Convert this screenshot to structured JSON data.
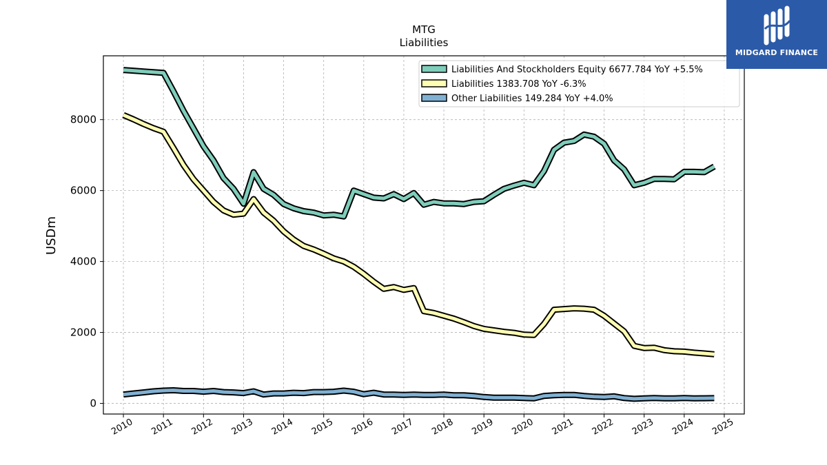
{
  "logo": {
    "text": "MIDGARD FINANCE"
  },
  "chart_data": {
    "type": "line",
    "title": "MTG",
    "subtitle": "Liabilities",
    "xlabel": "",
    "ylabel": "USDm",
    "xlim": [
      2009.5,
      2025.5
    ],
    "ylim": [
      -300,
      9800
    ],
    "x_ticks": [
      2010,
      2011,
      2012,
      2013,
      2014,
      2015,
      2016,
      2017,
      2018,
      2019,
      2020,
      2021,
      2022,
      2023,
      2024,
      2025
    ],
    "y_ticks": [
      0,
      2000,
      4000,
      6000,
      8000
    ],
    "grid": true,
    "legend_position": "top-right",
    "series": [
      {
        "name": "Liabilities And Stockholders Equity  6677.784 YoY +5.5%",
        "color": "#7fcdbb",
        "points": [
          [
            2010.0,
            9400
          ],
          [
            2010.25,
            9380
          ],
          [
            2010.5,
            9360
          ],
          [
            2010.75,
            9340
          ],
          [
            2011.0,
            9320
          ],
          [
            2011.25,
            8800
          ],
          [
            2011.5,
            8250
          ],
          [
            2011.75,
            7750
          ],
          [
            2012.0,
            7250
          ],
          [
            2012.25,
            6850
          ],
          [
            2012.5,
            6350
          ],
          [
            2012.75,
            6050
          ],
          [
            2013.0,
            5630
          ],
          [
            2013.25,
            6520
          ],
          [
            2013.5,
            6050
          ],
          [
            2013.75,
            5880
          ],
          [
            2014.0,
            5620
          ],
          [
            2014.25,
            5500
          ],
          [
            2014.5,
            5420
          ],
          [
            2014.75,
            5380
          ],
          [
            2015.0,
            5300
          ],
          [
            2015.25,
            5320
          ],
          [
            2015.5,
            5270
          ],
          [
            2015.75,
            6000
          ],
          [
            2016.0,
            5900
          ],
          [
            2016.25,
            5800
          ],
          [
            2016.5,
            5780
          ],
          [
            2016.75,
            5900
          ],
          [
            2017.0,
            5760
          ],
          [
            2017.25,
            5930
          ],
          [
            2017.5,
            5600
          ],
          [
            2017.75,
            5680
          ],
          [
            2018.0,
            5640
          ],
          [
            2018.25,
            5640
          ],
          [
            2018.5,
            5620
          ],
          [
            2018.75,
            5680
          ],
          [
            2019.0,
            5700
          ],
          [
            2019.25,
            5880
          ],
          [
            2019.5,
            6050
          ],
          [
            2019.75,
            6140
          ],
          [
            2020.0,
            6220
          ],
          [
            2020.25,
            6150
          ],
          [
            2020.5,
            6550
          ],
          [
            2020.75,
            7150
          ],
          [
            2021.0,
            7350
          ],
          [
            2021.25,
            7400
          ],
          [
            2021.5,
            7580
          ],
          [
            2021.75,
            7520
          ],
          [
            2022.0,
            7320
          ],
          [
            2022.25,
            6850
          ],
          [
            2022.5,
            6600
          ],
          [
            2022.75,
            6150
          ],
          [
            2023.0,
            6220
          ],
          [
            2023.25,
            6330
          ],
          [
            2023.5,
            6330
          ],
          [
            2023.75,
            6320
          ],
          [
            2024.0,
            6530
          ],
          [
            2024.25,
            6530
          ],
          [
            2024.5,
            6520
          ],
          [
            2024.75,
            6678
          ]
        ]
      },
      {
        "name": "Liabilities  1383.708 YoY -6.3%",
        "color": "#ffffb3",
        "points": [
          [
            2010.0,
            8130
          ],
          [
            2010.25,
            8010
          ],
          [
            2010.5,
            7880
          ],
          [
            2010.75,
            7760
          ],
          [
            2011.0,
            7660
          ],
          [
            2011.25,
            7200
          ],
          [
            2011.5,
            6720
          ],
          [
            2011.75,
            6320
          ],
          [
            2012.0,
            6000
          ],
          [
            2012.25,
            5680
          ],
          [
            2012.5,
            5440
          ],
          [
            2012.75,
            5320
          ],
          [
            2013.0,
            5350
          ],
          [
            2013.25,
            5760
          ],
          [
            2013.5,
            5380
          ],
          [
            2013.75,
            5150
          ],
          [
            2014.0,
            4850
          ],
          [
            2014.25,
            4620
          ],
          [
            2014.5,
            4440
          ],
          [
            2014.75,
            4340
          ],
          [
            2015.0,
            4220
          ],
          [
            2015.25,
            4090
          ],
          [
            2015.5,
            4000
          ],
          [
            2015.75,
            3850
          ],
          [
            2016.0,
            3650
          ],
          [
            2016.25,
            3430
          ],
          [
            2016.5,
            3230
          ],
          [
            2016.75,
            3280
          ],
          [
            2017.0,
            3200
          ],
          [
            2017.25,
            3250
          ],
          [
            2017.5,
            2600
          ],
          [
            2017.75,
            2550
          ],
          [
            2018.0,
            2470
          ],
          [
            2018.25,
            2390
          ],
          [
            2018.5,
            2290
          ],
          [
            2018.75,
            2180
          ],
          [
            2019.0,
            2100
          ],
          [
            2019.25,
            2060
          ],
          [
            2019.5,
            2020
          ],
          [
            2019.75,
            1990
          ],
          [
            2020.0,
            1940
          ],
          [
            2020.25,
            1930
          ],
          [
            2020.5,
            2240
          ],
          [
            2020.75,
            2640
          ],
          [
            2021.0,
            2660
          ],
          [
            2021.25,
            2680
          ],
          [
            2021.5,
            2670
          ],
          [
            2021.75,
            2640
          ],
          [
            2022.0,
            2470
          ],
          [
            2022.25,
            2250
          ],
          [
            2022.5,
            2030
          ],
          [
            2022.75,
            1620
          ],
          [
            2023.0,
            1560
          ],
          [
            2023.25,
            1570
          ],
          [
            2023.5,
            1500
          ],
          [
            2023.75,
            1470
          ],
          [
            2024.0,
            1460
          ],
          [
            2024.25,
            1430
          ],
          [
            2024.5,
            1410
          ],
          [
            2024.75,
            1384
          ]
        ]
      },
      {
        "name": "Other Liabilities  149.284 YoY +4.0%",
        "color": "#80b1d3",
        "points": [
          [
            2010.0,
            250
          ],
          [
            2010.25,
            280
          ],
          [
            2010.5,
            310
          ],
          [
            2010.75,
            340
          ],
          [
            2011.0,
            360
          ],
          [
            2011.25,
            370
          ],
          [
            2011.5,
            350
          ],
          [
            2011.75,
            350
          ],
          [
            2012.0,
            330
          ],
          [
            2012.25,
            350
          ],
          [
            2012.5,
            320
          ],
          [
            2012.75,
            310
          ],
          [
            2013.0,
            290
          ],
          [
            2013.25,
            340
          ],
          [
            2013.5,
            250
          ],
          [
            2013.75,
            280
          ],
          [
            2014.0,
            280
          ],
          [
            2014.25,
            300
          ],
          [
            2014.5,
            290
          ],
          [
            2014.75,
            320
          ],
          [
            2015.0,
            320
          ],
          [
            2015.25,
            330
          ],
          [
            2015.5,
            360
          ],
          [
            2015.75,
            330
          ],
          [
            2016.0,
            260
          ],
          [
            2016.25,
            300
          ],
          [
            2016.5,
            250
          ],
          [
            2016.75,
            250
          ],
          [
            2017.0,
            240
          ],
          [
            2017.25,
            250
          ],
          [
            2017.5,
            240
          ],
          [
            2017.75,
            240
          ],
          [
            2018.0,
            250
          ],
          [
            2018.25,
            230
          ],
          [
            2018.5,
            230
          ],
          [
            2018.75,
            210
          ],
          [
            2019.0,
            180
          ],
          [
            2019.25,
            160
          ],
          [
            2019.5,
            160
          ],
          [
            2019.75,
            160
          ],
          [
            2020.0,
            150
          ],
          [
            2020.25,
            140
          ],
          [
            2020.5,
            210
          ],
          [
            2020.75,
            230
          ],
          [
            2021.0,
            240
          ],
          [
            2021.25,
            240
          ],
          [
            2021.5,
            210
          ],
          [
            2021.75,
            190
          ],
          [
            2022.0,
            180
          ],
          [
            2022.25,
            200
          ],
          [
            2022.5,
            150
          ],
          [
            2022.75,
            130
          ],
          [
            2023.0,
            140
          ],
          [
            2023.25,
            150
          ],
          [
            2023.5,
            140
          ],
          [
            2023.75,
            140
          ],
          [
            2024.0,
            150
          ],
          [
            2024.25,
            140
          ],
          [
            2024.5,
            145
          ],
          [
            2024.75,
            149
          ]
        ]
      }
    ]
  }
}
